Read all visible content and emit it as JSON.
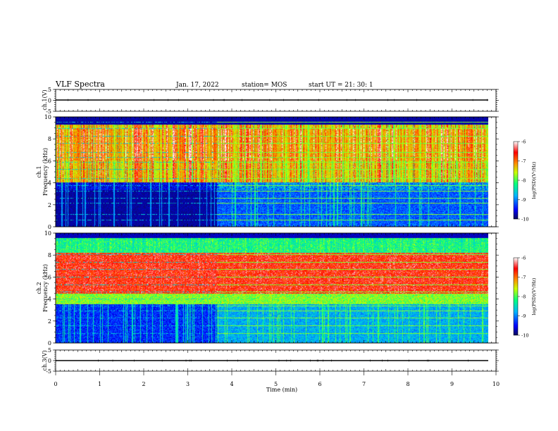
{
  "header": {
    "title": "VLF Spectra",
    "date": "Jan. 17, 2022",
    "station": "station= MOS",
    "start": "start  UT =   21: 30: 1"
  },
  "chart_data": [
    {
      "type": "line",
      "panel": "ch1-waveform",
      "ylabel": "ch.1(V)",
      "ylim": [
        -5,
        5
      ],
      "yticks": [
        "5",
        "0",
        "-5"
      ],
      "series": [
        {
          "x": [
            0,
            9.82
          ],
          "values": [
            0,
            0
          ]
        }
      ]
    },
    {
      "type": "heatmap",
      "panel": "ch1-spectrogram",
      "ylabel": "ch.1\nFrequency (kHz)",
      "ylim": [
        0,
        10
      ],
      "yticks": [
        "0",
        "2",
        "4",
        "6",
        "8",
        "10"
      ],
      "colorbar": {
        "label": "log(PSD)(V²/Hz)",
        "range": [
          -10,
          -6
        ],
        "ticks": [
          "-6",
          "-7",
          "-8",
          "-9",
          "-10"
        ]
      },
      "segments": [
        {
          "t_start": 0,
          "t_end": 3.65,
          "description": "broadband hiss 4-9.3 kHz; quiet below 4 kHz with narrow lines"
        },
        {
          "t_start": 3.65,
          "t_end": 9.82,
          "description": "broadband hiss 4-9.3 kHz; persistent spectral lines 0.3-4 kHz"
        }
      ]
    },
    {
      "type": "heatmap",
      "panel": "ch2-spectrogram",
      "ylabel": "ch.2\nFrequency (kHz)",
      "ylim": [
        0,
        10
      ],
      "yticks": [
        "0",
        "2",
        "4",
        "6",
        "8",
        "10"
      ],
      "colorbar": {
        "label": "log(PSD)(V²/Hz)",
        "range": [
          -10,
          -6
        ],
        "ticks": [
          "-6",
          "-7",
          "-8",
          "-9",
          "-10"
        ]
      },
      "segments": [
        {
          "t_start": 0,
          "t_end": 3.65,
          "description": "strong emission 4.5-8 kHz; quiet below 3.5 kHz"
        },
        {
          "t_start": 3.65,
          "t_end": 9.82,
          "description": "strong emission 4.5-8 kHz; persistent spectral lines 0.3-3.5 kHz"
        }
      ]
    },
    {
      "type": "line",
      "panel": "ch3-waveform",
      "ylabel": "ch.3(V)",
      "ylim": [
        -5,
        5
      ],
      "yticks": [
        "5",
        "0",
        "-5"
      ],
      "series": [
        {
          "x": [
            0,
            9.82
          ],
          "values": [
            0,
            0
          ]
        }
      ]
    }
  ],
  "xaxis": {
    "label": "Time (min)",
    "range": [
      0,
      10
    ],
    "ticks": [
      "0",
      "1",
      "2",
      "3",
      "4",
      "5",
      "6",
      "7",
      "8",
      "9",
      "10"
    ]
  },
  "colors": {
    "colormap": [
      "#0a0a5a",
      "#0000ff",
      "#00b4ff",
      "#00ff80",
      "#c8ff00",
      "#ff8c00",
      "#ff0000",
      "#ffffff"
    ]
  }
}
